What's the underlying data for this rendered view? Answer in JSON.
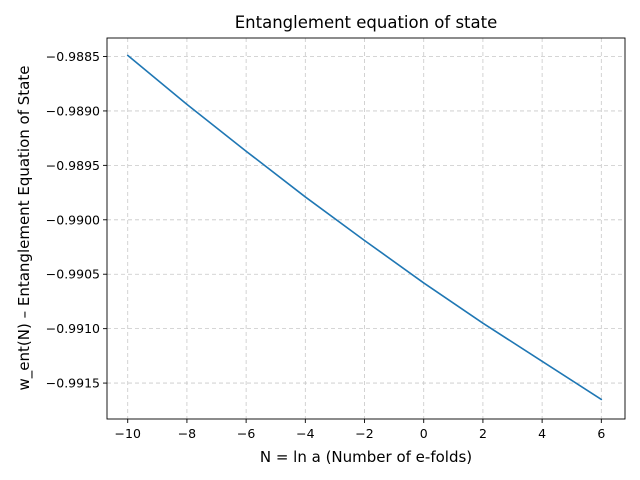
{
  "chart_data": {
    "type": "line",
    "title": "Entanglement equation of state",
    "xlabel": "N = ln a (Number of e-folds)",
    "ylabel": "w_ent(N) – Entanglement Equation of State",
    "xlim": [
      -10.7,
      6.8
    ],
    "ylim": [
      -0.99183,
      -0.98833
    ],
    "xticks": [
      -10,
      -8,
      -6,
      -4,
      -2,
      0,
      2,
      4,
      6
    ],
    "xtick_labels": [
      "−10",
      "−8",
      "−6",
      "−4",
      "−2",
      "0",
      "2",
      "4",
      "6"
    ],
    "yticks": [
      -0.9885,
      -0.989,
      -0.9895,
      -0.99,
      -0.9905,
      -0.991,
      -0.9915
    ],
    "ytick_labels": [
      "−0.9885",
      "−0.9890",
      "−0.9895",
      "−0.9900",
      "−0.9905",
      "−0.9910",
      "−0.9915"
    ],
    "grid": true,
    "series": [
      {
        "color": "#1f77b4",
        "x": [
          -10,
          -8,
          -6,
          -4,
          -2,
          0,
          2,
          4,
          6
        ],
        "y": [
          -0.98849,
          -0.98894,
          -0.98937,
          -0.98979,
          -0.99019,
          -0.99058,
          -0.99095,
          -0.9913,
          -0.99165
        ]
      }
    ]
  }
}
